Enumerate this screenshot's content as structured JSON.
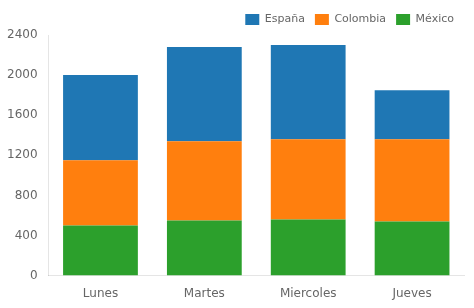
{
  "chart_data": {
    "type": "bar",
    "stacked": true,
    "categories": [
      "Lunes",
      "Martes",
      "Miercoles",
      "Jueves"
    ],
    "series": [
      {
        "name": "México",
        "color": "#2ca02c",
        "values": [
          500,
          550,
          560,
          540
        ]
      },
      {
        "name": "Colombia",
        "color": "#ff7f0e",
        "values": [
          650,
          790,
          800,
          820
        ]
      },
      {
        "name": "España",
        "color": "#1f77b4",
        "values": [
          850,
          940,
          940,
          490
        ]
      }
    ],
    "ylim": [
      0,
      2400
    ],
    "yticks": [
      0,
      400,
      800,
      1200,
      1600,
      2000,
      2400
    ],
    "grid": false,
    "legend": "upper right"
  }
}
